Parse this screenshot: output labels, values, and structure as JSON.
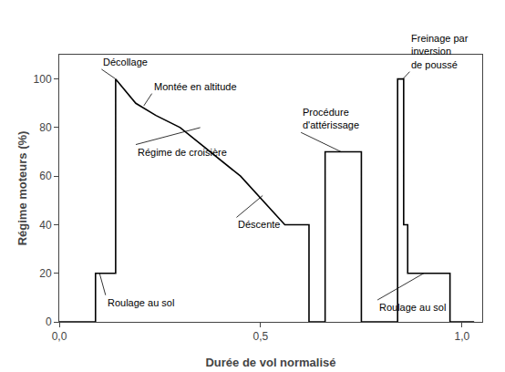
{
  "chart_data": {
    "type": "line",
    "xlabel": "Durée de vol normalisé",
    "ylabel": "Régime moteurs (%)",
    "xlim": [
      0.0,
      1.05
    ],
    "ylim": [
      0,
      110
    ],
    "xticks": [
      {
        "value": 0.0,
        "label": "0,0"
      },
      {
        "value": 0.5,
        "label": "0,5"
      },
      {
        "value": 1.0,
        "label": "1,0"
      }
    ],
    "yticks": [
      0,
      20,
      40,
      60,
      80,
      100
    ],
    "grid": false,
    "color": "#000000",
    "x": [
      0.0,
      0.09,
      0.09,
      0.14,
      0.14,
      0.19,
      0.19,
      0.24,
      0.24,
      0.3,
      0.3,
      0.45,
      0.56,
      0.62,
      0.62,
      0.66,
      0.66,
      0.75,
      0.75,
      0.84,
      0.84,
      0.855,
      0.855,
      0.865,
      0.865,
      0.88,
      0.88,
      0.97,
      0.97,
      1.03
    ],
    "values": [
      0,
      0,
      20,
      20,
      100,
      90,
      90,
      85,
      85,
      80,
      80,
      60,
      40,
      40,
      0,
      0,
      70,
      70,
      0,
      0,
      100,
      100,
      40,
      40,
      20,
      20,
      20,
      20,
      0,
      0
    ],
    "annotations": [
      {
        "text": "Décollage",
        "xy": [
          0.14,
          100
        ],
        "xytext": [
          0.105,
          104
        ]
      },
      {
        "text": "Montée en altitude",
        "xy": [
          0.21,
          89
        ],
        "xytext": [
          0.23,
          94
        ]
      },
      {
        "text": "Régime de croisière",
        "xy": [
          0.35,
          80
        ],
        "xytext": [
          0.19,
          73
        ]
      },
      {
        "text": "Déscente",
        "xy": [
          0.505,
          52
        ],
        "xytext": [
          0.44,
          43
        ]
      },
      {
        "text": "Procédure\nd'attérissage",
        "xy": [
          0.7,
          70
        ],
        "xytext": [
          0.6,
          78
        ]
      },
      {
        "text": "Freinage par\ninversion\nde poussé",
        "xy": [
          0.853,
          100
        ],
        "xytext": [
          0.87,
          103
        ]
      },
      {
        "text": "Roulage au sol",
        "xy": [
          0.1,
          20
        ],
        "xytext": [
          0.115,
          11
        ]
      },
      {
        "text": "Roulage au sol",
        "xy": [
          0.905,
          20
        ],
        "xytext": [
          0.79,
          9
        ]
      }
    ]
  }
}
